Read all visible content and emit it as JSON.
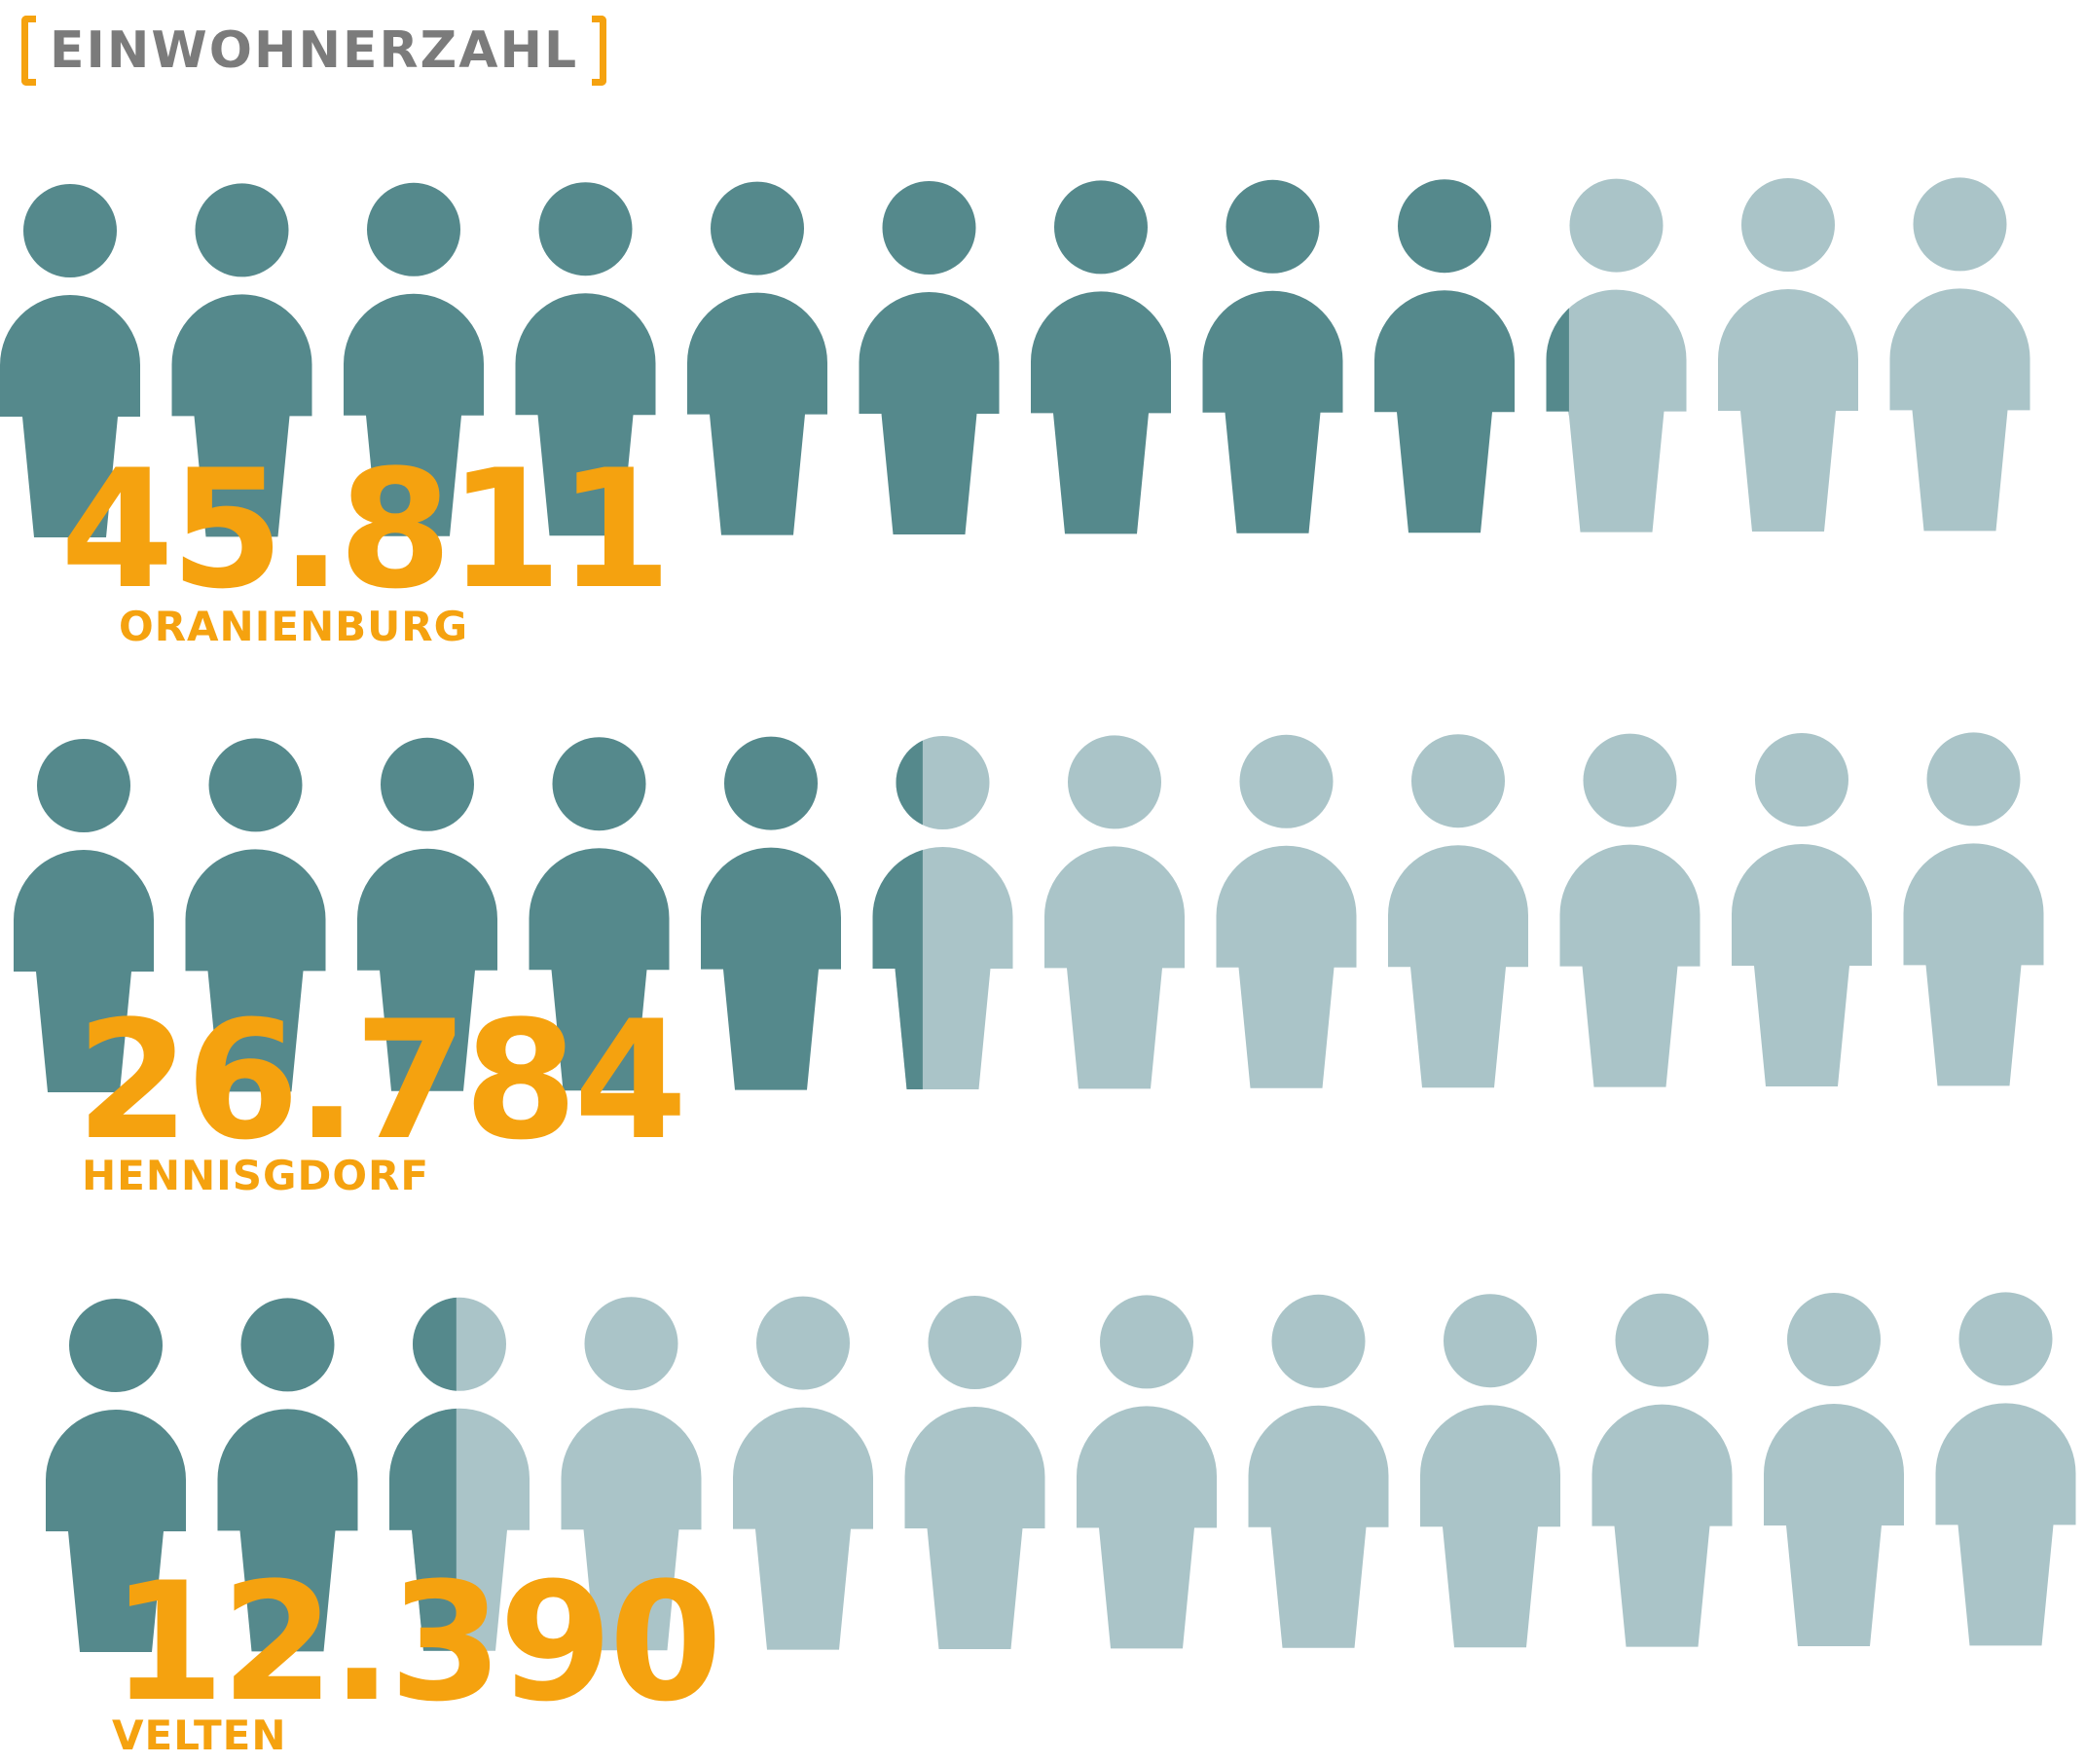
{
  "title": "EINWOHNERZAHL",
  "colors": {
    "accent": "#f5a20f",
    "filled": "#55898c",
    "empty": "#aac4c8",
    "title_text": "#7b7b7b"
  },
  "chart_data": {
    "type": "pictogram",
    "icons_per_row": 12,
    "people_per_icon": 5000,
    "rows": [
      {
        "city": "ORANIENBURG",
        "value_label": "45.811",
        "value": 45811
      },
      {
        "city": "HENNISGDORF",
        "value_label": "26.784",
        "value": 26784
      },
      {
        "city": "VELTEN",
        "value_label": "12.390",
        "value": 12390
      }
    ]
  }
}
